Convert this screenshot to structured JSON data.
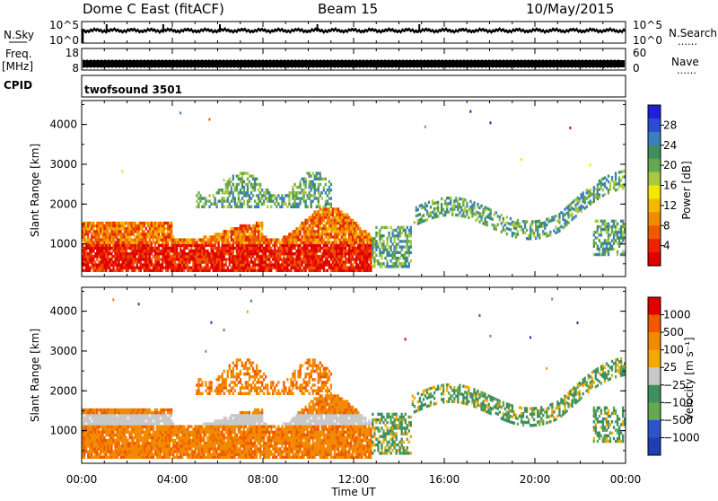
{
  "header": {
    "station": "Dome C East (fitACF)",
    "beam": "Beam 15",
    "date": "10/May/2015"
  },
  "colors": {
    "power": [
      "#1f1fd9",
      "#2b4bd0",
      "#3b7fc0",
      "#3f8f5e",
      "#65a84f",
      "#a9c940",
      "#f2e700",
      "#f5b800",
      "#f08a00",
      "#ef5a00",
      "#e82400",
      "#e00000"
    ],
    "velocity": [
      "#e00000",
      "#ef5a00",
      "#f28a00",
      "#f5a800",
      "#c8c8c8",
      "#3f8f5e",
      "#65a84f",
      "#2b55c8",
      "#1f3fb0"
    ]
  },
  "chart_data": [
    {
      "type": "line",
      "panel": "noise",
      "left_label": "N.Sky",
      "right_label": "N.Search",
      "yticks_left": [
        "10^5",
        "10^0"
      ],
      "yticks_right": [
        "10^5",
        "10^0"
      ],
      "right_legend_symbol": "……",
      "x": [
        0,
        1,
        2,
        4,
        6,
        8,
        10,
        12,
        14,
        16,
        18,
        20,
        22,
        24
      ],
      "values": [
        10000,
        12000,
        9000,
        11000,
        10000,
        9500,
        10500,
        11000,
        10000,
        9800,
        10200,
        10000,
        11000,
        10000
      ]
    },
    {
      "type": "line",
      "panel": "frequency",
      "left_label_line1": "Freq.",
      "left_label_line2": "[MHz]",
      "right_label": "Nave",
      "yticks_left": [
        "18",
        "8"
      ],
      "yticks_right": [
        "60",
        "0"
      ],
      "right_legend_symbol": "……",
      "series": [
        {
          "values": [
            10.8,
            10.8,
            10.8,
            10.8,
            10.8,
            10.8,
            10.8,
            10.8,
            10.8,
            10.8,
            10.8,
            10.8,
            10.8
          ]
        }
      ]
    },
    {
      "type": "table",
      "panel": "cpid",
      "left_label": "CPID",
      "text": "twofsound 3501"
    },
    {
      "type": "heatmap",
      "panel": "power",
      "ylabel": "Slant Range [km]",
      "colorbar_label": "Power [dB]",
      "colorbar_ticks": [
        "28",
        "24",
        "20",
        "16",
        "12",
        "8",
        "4"
      ],
      "ylim": [
        180,
        4600
      ],
      "yticks": [
        "1000",
        "2000",
        "3000",
        "4000"
      ],
      "xlim": [
        0,
        24
      ]
    },
    {
      "type": "heatmap",
      "panel": "velocity",
      "ylabel": "Slant Range [km]",
      "colorbar_label": "Velocity [m s⁻¹]",
      "colorbar_ticks": [
        "1000",
        "500",
        "100",
        "25",
        "−25",
        "−100",
        "−500",
        "−1000"
      ],
      "ylim": [
        180,
        4600
      ],
      "yticks": [
        "1000",
        "2000",
        "3000",
        "4000"
      ],
      "xlim": [
        0,
        24
      ]
    }
  ],
  "xaxis": {
    "ticks": [
      "00:00",
      "04:00",
      "08:00",
      "12:00",
      "16:00",
      "20:00",
      "00:00"
    ],
    "label": "Time UT"
  }
}
